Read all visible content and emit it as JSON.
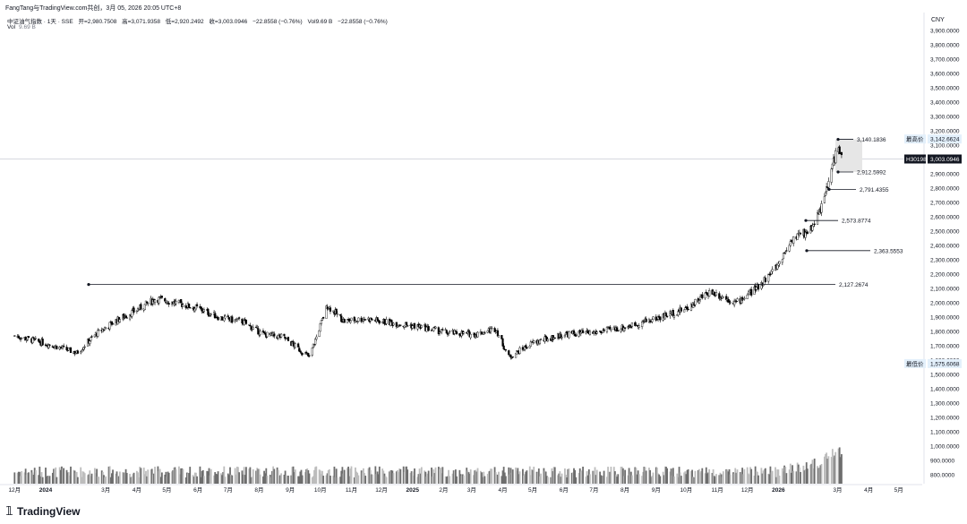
{
  "attribution": "FangTang与TradingView.com共创，3月 05, 2026 20:05 UTC+8",
  "legend": {
    "symbol": "中证油气指数 · 1天 · SSE",
    "open": "开=2,980.7508",
    "high": "高=3,071.9358",
    "low": "低=2,920.2492",
    "close": "收=3,003.0946",
    "change": "−22.8558 (−0.76%)",
    "volume": "Vol9.69 B",
    "volume_change": "−22.8558 (−0.76%)"
  },
  "volume_legend": {
    "label": "Vol",
    "value": "9.69 B"
  },
  "currency": "CNY",
  "price_axis_ticks": [
    "3,900.0000",
    "3,800.0000",
    "3,700.0000",
    "3,600.0000",
    "3,500.0000",
    "3,400.0000",
    "3,300.0000",
    "3,200.0000",
    "3,100.0000",
    "2,900.0000",
    "2,800.0000",
    "2,700.0000",
    "2,600.0000",
    "2,500.0000",
    "2,400.0000",
    "2,300.0000",
    "2,200.0000",
    "2,100.0000",
    "2,000.0000",
    "1,900.0000",
    "1,800.0000",
    "1,700.0000",
    "1,600.0000",
    "1,500.0000",
    "1,400.0000",
    "1,300.0000",
    "1,200.0000",
    "1,100.0000",
    "1,000.0000",
    "900.0000",
    "800.0000"
  ],
  "price_labels": {
    "high_label": "最高价",
    "high_value": "3,142.6624",
    "symbol_code": "H30198",
    "last_value": "3,003.0946",
    "low_label": "最低价",
    "low_value": "1,575.6068"
  },
  "time_ticks": [
    "12月",
    "2024",
    "3月",
    "4月",
    "5月",
    "6月",
    "7月",
    "8月",
    "9月",
    "10月",
    "11月",
    "12月",
    "2025",
    "2月",
    "3月",
    "4月",
    "5月",
    "6月",
    "7月",
    "8月",
    "9月",
    "10月",
    "11月",
    "12月",
    "2026",
    "3月",
    "4月",
    "5月"
  ],
  "annotations": [
    {
      "label": "3,140.1836",
      "value": 3140.1836
    },
    {
      "label": "2,912.5992",
      "value": 2912.5992
    },
    {
      "label": "2,791.4355",
      "value": 2791.4355
    },
    {
      "label": "2,573.8774",
      "value": 2573.8774
    },
    {
      "label": "2,363.5553",
      "value": 2363.5553
    },
    {
      "label": "2,127.2674",
      "value": 2127.2674
    }
  ],
  "logo_text": "TradingView",
  "colors": {
    "up": "#ffffff",
    "down": "#000000",
    "volume_up": "#bdbdbd",
    "volume_down": "#6d6d6d",
    "highlight": "#e6e6e6"
  },
  "chart_data": {
    "type": "candlestick",
    "price_range": [
      800,
      3950
    ],
    "x_start": "2023-12",
    "x_end": "2026-05",
    "close_series_approx": [
      {
        "date": "2023-12-01",
        "close": 1770
      },
      {
        "date": "2024-01-10",
        "close": 1700
      },
      {
        "date": "2024-02-01",
        "close": 1650
      },
      {
        "date": "2024-02-20",
        "close": 1780
      },
      {
        "date": "2024-03-10",
        "close": 1870
      },
      {
        "date": "2024-04-01",
        "close": 1950
      },
      {
        "date": "2024-04-20",
        "close": 2030
      },
      {
        "date": "2024-05-10",
        "close": 2000
      },
      {
        "date": "2024-06-01",
        "close": 1960
      },
      {
        "date": "2024-06-25",
        "close": 1890
      },
      {
        "date": "2024-07-15",
        "close": 1870
      },
      {
        "date": "2024-08-05",
        "close": 1780
      },
      {
        "date": "2024-08-25",
        "close": 1760
      },
      {
        "date": "2024-09-20",
        "close": 1620
      },
      {
        "date": "2024-10-08",
        "close": 1980
      },
      {
        "date": "2024-10-25",
        "close": 1870
      },
      {
        "date": "2024-11-15",
        "close": 1890
      },
      {
        "date": "2024-12-10",
        "close": 1860
      },
      {
        "date": "2025-01-10",
        "close": 1830
      },
      {
        "date": "2025-02-05",
        "close": 1790
      },
      {
        "date": "2025-03-05",
        "close": 1780
      },
      {
        "date": "2025-03-25",
        "close": 1820
      },
      {
        "date": "2025-04-07",
        "close": 1620
      },
      {
        "date": "2025-05-01",
        "close": 1720
      },
      {
        "date": "2025-06-01",
        "close": 1780
      },
      {
        "date": "2025-07-01",
        "close": 1790
      },
      {
        "date": "2025-08-01",
        "close": 1830
      },
      {
        "date": "2025-09-01",
        "close": 1890
      },
      {
        "date": "2025-10-01",
        "close": 1960
      },
      {
        "date": "2025-10-25",
        "close": 2080
      },
      {
        "date": "2025-11-20",
        "close": 2000
      },
      {
        "date": "2025-12-10",
        "close": 2100
      },
      {
        "date": "2025-12-30",
        "close": 2250
      },
      {
        "date": "2026-01-15",
        "close": 2450
      },
      {
        "date": "2026-02-01",
        "close": 2500
      },
      {
        "date": "2026-02-15",
        "close": 2700
      },
      {
        "date": "2026-03-01",
        "close": 3100
      },
      {
        "date": "2026-03-05",
        "close": 3003.0946
      }
    ]
  }
}
